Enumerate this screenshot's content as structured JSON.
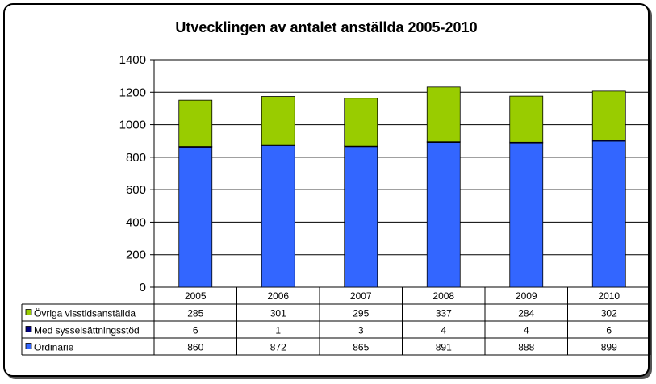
{
  "chart_data": {
    "type": "bar",
    "stacked": true,
    "title": "Utvecklingen av antalet anställda 2005-2010",
    "categories": [
      "2005",
      "2006",
      "2007",
      "2008",
      "2009",
      "2010"
    ],
    "ylim": [
      0,
      1400
    ],
    "yticks": [
      "0",
      "200",
      "400",
      "600",
      "800",
      "1000",
      "1200",
      "1400"
    ],
    "grid": true,
    "legend": "data-table",
    "series": [
      {
        "name": "Ordinarie",
        "color": "#3366FF",
        "values": [
          860,
          872,
          865,
          891,
          888,
          899
        ]
      },
      {
        "name": "Med sysselsättningsstöd",
        "color": "#000080",
        "values": [
          6,
          1,
          3,
          4,
          4,
          6
        ]
      },
      {
        "name": "Övriga visstidsanställda",
        "color": "#99CC00",
        "values": [
          285,
          301,
          295,
          337,
          284,
          302
        ]
      }
    ],
    "table_rows": [
      {
        "name": "Övriga visstidsanställda",
        "color": "#99CC00",
        "values": [
          "285",
          "301",
          "295",
          "337",
          "284",
          "302"
        ]
      },
      {
        "name": "Med sysselsättningsstöd",
        "color": "#000080",
        "values": [
          "6",
          "1",
          "3",
          "4",
          "4",
          "6"
        ]
      },
      {
        "name": "Ordinarie",
        "color": "#3366FF",
        "values": [
          "860",
          "872",
          "865",
          "891",
          "888",
          "899"
        ]
      }
    ]
  }
}
